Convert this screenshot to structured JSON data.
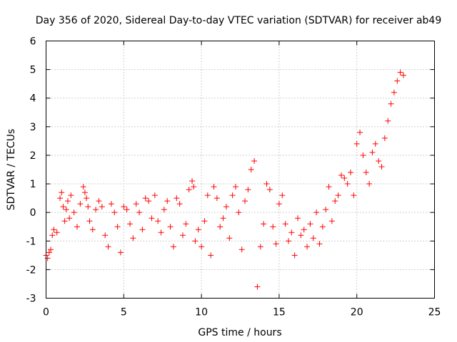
{
  "chart_data": {
    "type": "scatter",
    "title": "Day 356 of 2020, Sidereal Day-to-day VTEC variation (SDTVAR) for receiver ab49",
    "xlabel": "GPS time / hours",
    "ylabel": "SDTVAR / TECUs",
    "xlim": [
      0,
      25
    ],
    "ylim": [
      -3,
      6
    ],
    "x_ticks": [
      "0",
      "5",
      "10",
      "15",
      "20",
      "25"
    ],
    "y_ticks": [
      "-3",
      "-2",
      "-1",
      "0",
      "1",
      "2",
      "3",
      "4",
      "5",
      "6"
    ],
    "grid": true,
    "marker": "+",
    "color": "#ff0000",
    "series": [
      {
        "name": "SDTVAR",
        "x": [
          0.0,
          0.1,
          0.2,
          0.3,
          0.4,
          0.5,
          0.7,
          0.9,
          1.0,
          1.1,
          1.2,
          1.3,
          1.4,
          1.5,
          1.6,
          1.8,
          2.0,
          2.2,
          2.4,
          2.5,
          2.6,
          2.7,
          2.8,
          3.0,
          3.2,
          3.4,
          3.6,
          3.8,
          4.0,
          4.2,
          4.4,
          4.6,
          4.8,
          5.0,
          5.2,
          5.4,
          5.6,
          5.8,
          6.0,
          6.2,
          6.4,
          6.6,
          6.8,
          7.0,
          7.2,
          7.4,
          7.6,
          7.8,
          8.0,
          8.2,
          8.4,
          8.6,
          8.8,
          9.0,
          9.2,
          9.4,
          9.5,
          9.6,
          9.8,
          10.0,
          10.2,
          10.4,
          10.6,
          10.8,
          11.0,
          11.2,
          11.4,
          11.6,
          11.8,
          12.0,
          12.2,
          12.4,
          12.6,
          12.8,
          13.0,
          13.2,
          13.4,
          13.6,
          13.8,
          14.0,
          14.2,
          14.4,
          14.6,
          14.8,
          15.0,
          15.2,
          15.4,
          15.6,
          15.8,
          16.0,
          16.2,
          16.4,
          16.6,
          16.8,
          17.0,
          17.2,
          17.4,
          17.6,
          17.8,
          18.0,
          18.2,
          18.4,
          18.6,
          18.8,
          19.0,
          19.2,
          19.4,
          19.6,
          19.8,
          20.0,
          20.2,
          20.4,
          20.6,
          20.8,
          21.0,
          21.2,
          21.4,
          21.6,
          21.8,
          22.0,
          22.2,
          22.4,
          22.6,
          22.8,
          23.0
        ],
        "y": [
          -1.5,
          -1.6,
          -1.4,
          -1.3,
          -0.8,
          -0.6,
          -0.7,
          0.5,
          0.7,
          0.2,
          -0.3,
          0.1,
          0.4,
          -0.2,
          0.6,
          0.0,
          -0.5,
          0.3,
          0.9,
          0.7,
          0.5,
          0.2,
          -0.3,
          -0.6,
          0.1,
          0.4,
          0.2,
          -0.8,
          -1.2,
          0.3,
          0.0,
          -0.5,
          -1.4,
          0.2,
          0.1,
          -0.4,
          -0.9,
          0.3,
          0.0,
          -0.6,
          0.5,
          0.4,
          -0.2,
          0.6,
          -0.3,
          -0.7,
          0.1,
          0.4,
          -0.5,
          -1.2,
          0.5,
          0.3,
          -0.8,
          -0.4,
          0.8,
          1.1,
          0.9,
          -1.0,
          -0.6,
          -1.2,
          -0.3,
          0.6,
          -1.5,
          0.9,
          0.5,
          -0.5,
          -0.2,
          0.2,
          -0.9,
          0.6,
          0.9,
          0.0,
          -1.3,
          0.4,
          0.8,
          1.5,
          1.8,
          -2.6,
          -1.2,
          -0.4,
          1.0,
          0.8,
          -0.5,
          -1.1,
          0.3,
          0.6,
          -0.4,
          -1.0,
          -0.7,
          -1.5,
          -0.2,
          -0.8,
          -0.6,
          -1.2,
          -0.4,
          -0.9,
          0.0,
          -1.1,
          -0.5,
          0.1,
          0.9,
          -0.3,
          0.4,
          0.6,
          1.3,
          1.2,
          1.0,
          1.4,
          0.6,
          2.4,
          2.8,
          2.0,
          1.4,
          1.0,
          2.1,
          2.4,
          1.8,
          1.6,
          2.6,
          3.2,
          3.8,
          4.2,
          4.6,
          4.9,
          4.8
        ]
      }
    ]
  }
}
